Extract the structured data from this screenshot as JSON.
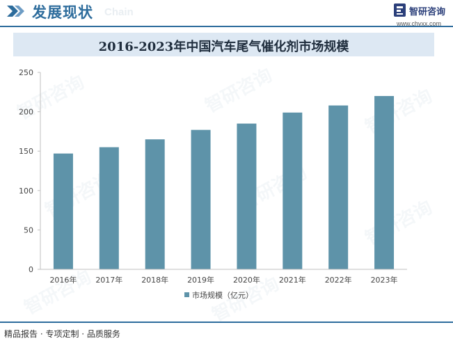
{
  "header": {
    "section_title": "发展现状",
    "section_subtitle": "Chain",
    "brand_name": "智研咨询",
    "brand_url": "www.chyxx.com",
    "accent_color": "#2d6c9c"
  },
  "footer": {
    "tagline": "精品报告 · 专项定制 · 品质服务"
  },
  "watermark": "智研咨询",
  "chart_data": {
    "type": "bar",
    "title": "2016-2023年中国汽车尾气催化剂市场规模",
    "categories": [
      "2016年",
      "2017年",
      "2018年",
      "2019年",
      "2020年",
      "2021年",
      "2022年",
      "2023年"
    ],
    "series": [
      {
        "name": "市场规模（亿元）",
        "values": [
          147,
          155,
          165,
          177,
          185,
          199,
          208,
          220
        ],
        "color": "#5e93a9"
      }
    ],
    "ylim": [
      0,
      250
    ],
    "yticks": [
      0,
      50,
      100,
      150,
      200,
      250
    ],
    "xlabel": "",
    "ylabel": "",
    "grid": false,
    "legend": "bottom"
  }
}
